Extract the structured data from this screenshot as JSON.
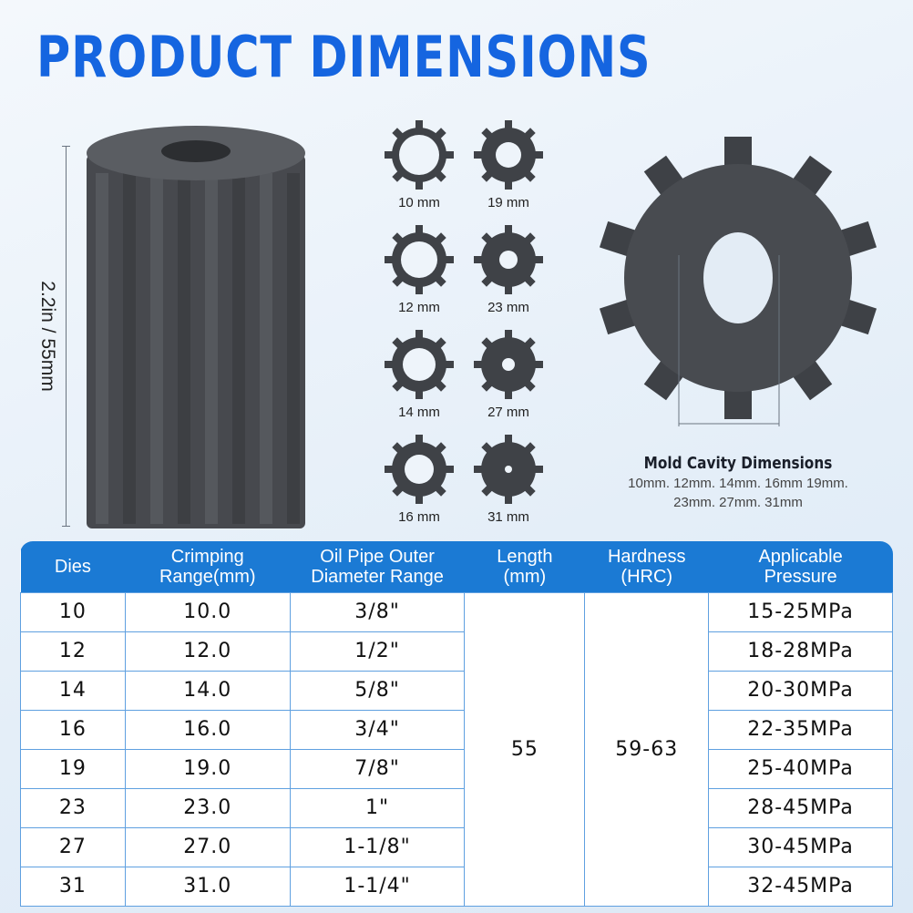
{
  "title": "PRODUCT DIMENSIONS",
  "height_label": "2.2in / 55mm",
  "die_sizes": [
    "10 mm",
    "19 mm",
    "12 mm",
    "23 mm",
    "14 mm",
    "27 mm",
    "16 mm",
    "31 mm"
  ],
  "caption": {
    "title": "Mold Cavity Dimensions",
    "line1": "10mm. 12mm. 14mm. 16mm 19mm.",
    "line2": "23mm. 27mm. 31mm"
  },
  "colors": {
    "accent": "#1565e0",
    "header": "#1b7ad4",
    "product": "#4a4d52"
  },
  "table": {
    "headers": [
      [
        "Dies",
        ""
      ],
      [
        "Crimping",
        "Range(mm)"
      ],
      [
        "Oil Pipe Outer",
        "Diameter Range"
      ],
      [
        "Length",
        "(mm)"
      ],
      [
        "Hardness",
        "(HRC)"
      ],
      [
        "Applicable",
        "Pressure"
      ]
    ],
    "length": "55",
    "hardness": "59-63",
    "rows": [
      [
        "10",
        "10.0",
        "3/8\"",
        "15-25MPa"
      ],
      [
        "12",
        "12.0",
        "1/2\"",
        "18-28MPa"
      ],
      [
        "14",
        "14.0",
        "5/8\"",
        "20-30MPa"
      ],
      [
        "16",
        "16.0",
        "3/4\"",
        "22-35MPa"
      ],
      [
        "19",
        "19.0",
        "7/8\"",
        "25-40MPa"
      ],
      [
        "23",
        "23.0",
        "1\"",
        "28-45MPa"
      ],
      [
        "27",
        "27.0",
        "1-1/8\"",
        "30-45MPa"
      ],
      [
        "31",
        "31.0",
        "1-1/4\"",
        "32-45MPa"
      ]
    ]
  }
}
